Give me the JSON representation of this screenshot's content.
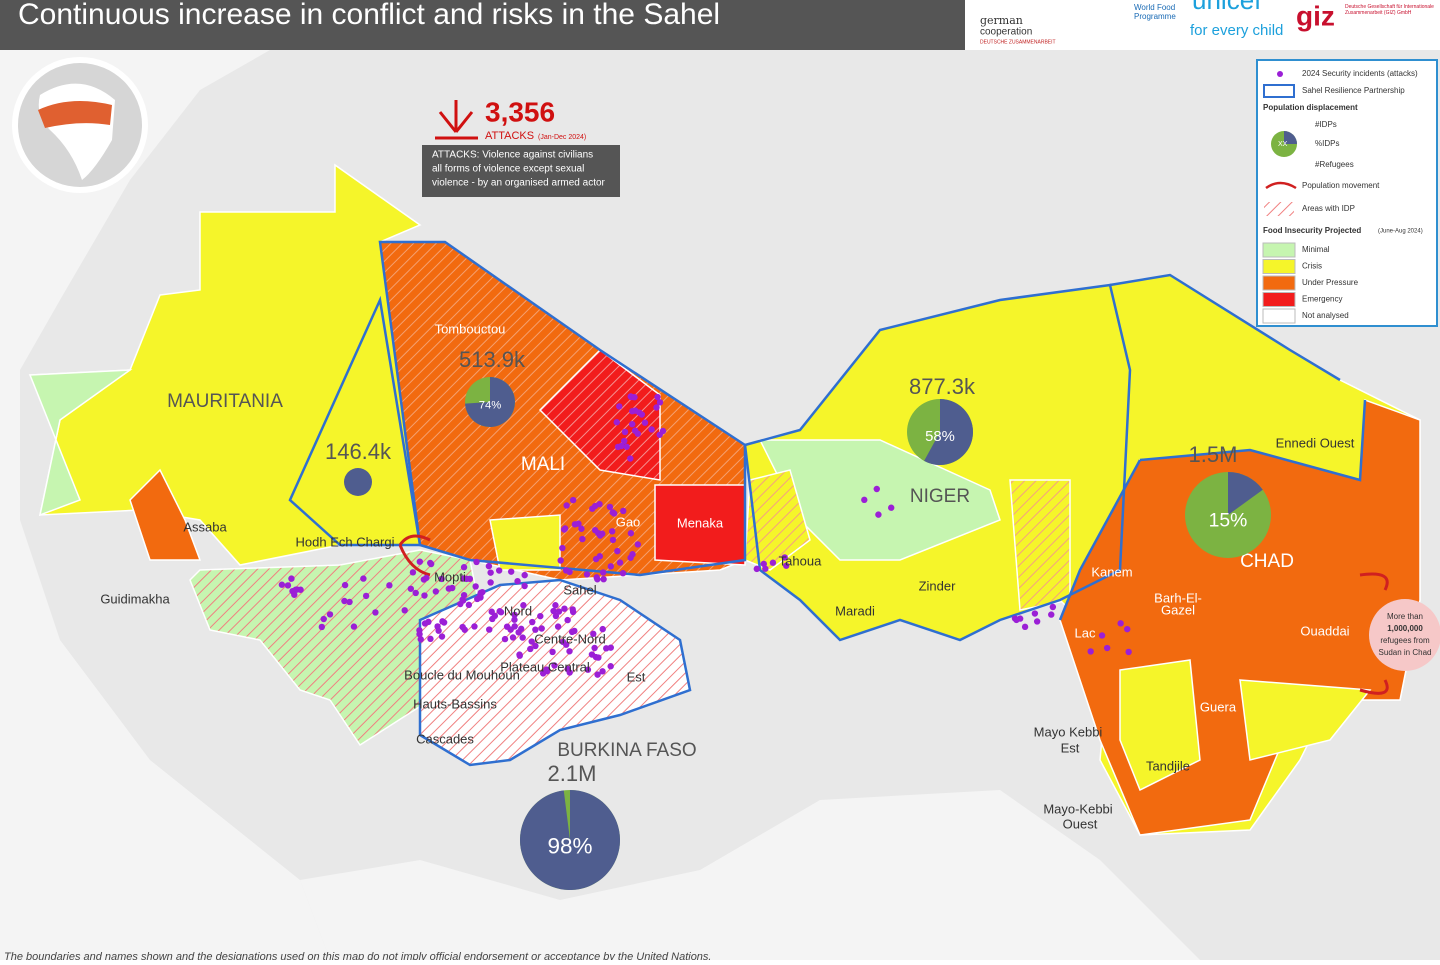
{
  "header": {
    "title": "Continuous increase in conflict and risks in the Sahel",
    "logos": [
      "german",
      "cooperation",
      "DEUTSCHE ZUSAMMENARBEIT",
      "World Food",
      "Programme",
      "unicef",
      "for every child",
      "giz",
      "Deutsche Gesellschaft für Internationale Zusammenarbeit (GIZ) GmbH"
    ]
  },
  "attacks": {
    "value": "3,356",
    "label": "ATTACKS",
    "period": "(Jan-Dec 2024)",
    "note": [
      "ATTACKS: Violence against civilians",
      "all forms of violence except sexual",
      "violence - by an organised armed actor"
    ]
  },
  "legend": {
    "incidents": "2024 Security incidents (attacks)",
    "partnership": "Sahel Resilience Partnership",
    "displacement": "Population displacement",
    "pie_center": "XX",
    "pie_labels": [
      "#IDPs",
      "%IDPs",
      "#Refugees"
    ],
    "movement": "Population movement",
    "idp_areas": "Areas with IDP",
    "food_title": "Food Insecurity Projected",
    "food_period": "(June-Aug 2024)",
    "food": [
      {
        "name": "Minimal",
        "color": "#c6f5b0"
      },
      {
        "name": "Crisis",
        "color": "#f5f52a"
      },
      {
        "name": "Under Pressure",
        "color": "#f26a0f"
      },
      {
        "name": "Emergency",
        "color": "#f21c1c"
      },
      {
        "name": "Not analysed",
        "color": "#ffffff"
      }
    ]
  },
  "countries": [
    "MAURITANIA",
    "MALI",
    "NIGER",
    "CHAD",
    "BURKINA FASO"
  ],
  "regions": [
    "Tombouctou",
    "Assaba",
    "Hodh Ech Chargi",
    "Guidimakha",
    "Mopti",
    "Gao",
    "Menaka",
    "Tahoua",
    "Maradi",
    "Zinder",
    "Kanem",
    "Barh-El-",
    "Gazel",
    "Lac",
    "Ouaddai",
    "Guera",
    "Ennedi Ouest",
    "Mayo Kebbi",
    "Est",
    "Tandjile",
    "Mayo-Kebbi",
    "Ouest",
    "Sahel",
    "Nord",
    "Centre-Nord",
    "Plateau Central",
    "Est",
    "Boucle du Mouhoun",
    "Hauts-Bassins",
    "Cascades"
  ],
  "pies": [
    {
      "total": "513.9k",
      "share": 74,
      "share_label": "74%"
    },
    {
      "total": "146.4k"
    },
    {
      "total": "877.3k",
      "share": 58,
      "share_label": "58%"
    },
    {
      "total": "1.5M",
      "share": 15,
      "share_label": "15%"
    },
    {
      "total": "2.1M",
      "share": 98,
      "share_label": "98%"
    }
  ],
  "annotation": [
    "More than",
    "1,000,000",
    "refugees from",
    "Sudan in Chad"
  ],
  "footer": "The boundaries and names shown and the designations used on this map do not imply official endorsement or acceptance by the United Nations."
}
